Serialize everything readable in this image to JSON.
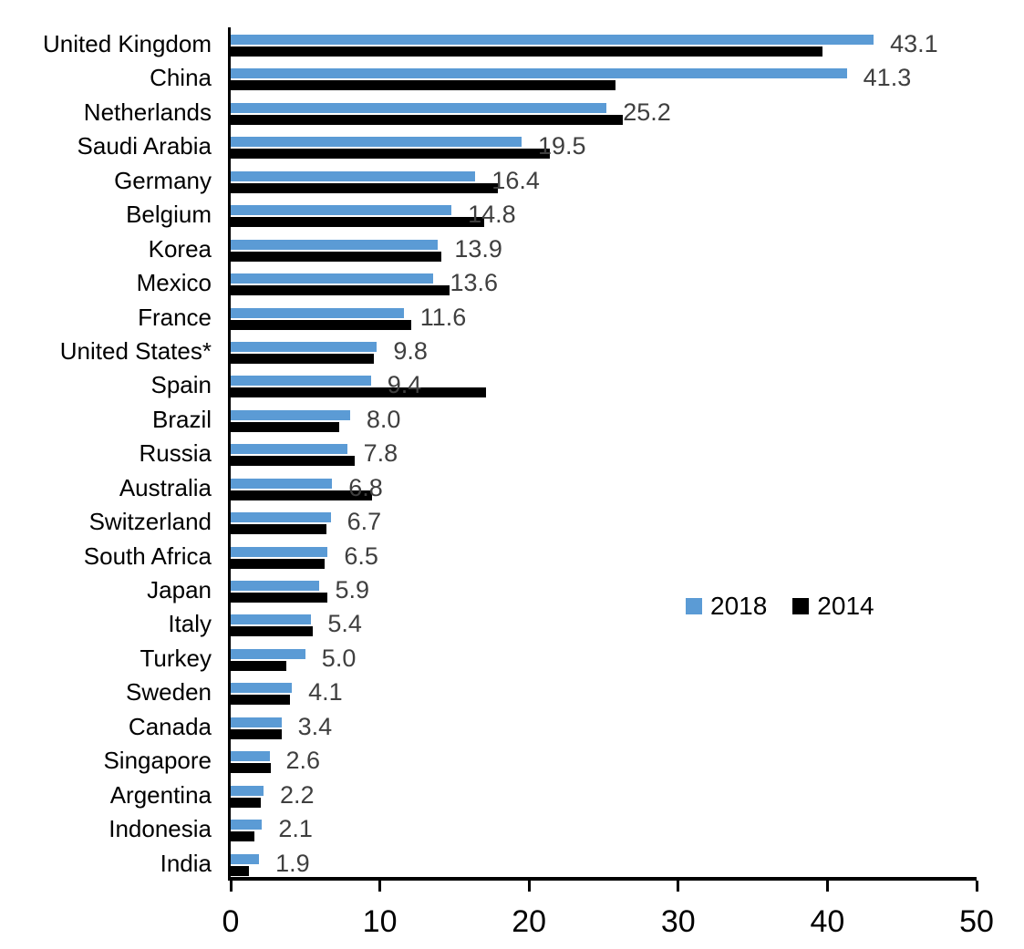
{
  "chart_data": {
    "type": "bar",
    "orientation": "horizontal",
    "title": "",
    "categories": [
      "United Kingdom",
      "China",
      "Netherlands",
      "Saudi Arabia",
      "Germany",
      "Belgium",
      "Korea",
      "Mexico",
      "France",
      "United States*",
      "Spain",
      "Brazil",
      "Russia",
      "Australia",
      "Switzerland",
      "South Africa",
      "Japan",
      "Italy",
      "Turkey",
      "Sweden",
      "Canada",
      "Singapore",
      "Argentina",
      "Indonesia",
      "India"
    ],
    "series": [
      {
        "name": "2018",
        "color": "#5B9BD5",
        "values": [
          43.1,
          41.3,
          25.2,
          19.5,
          16.4,
          14.8,
          13.9,
          13.6,
          11.6,
          9.8,
          9.4,
          8.0,
          7.8,
          6.8,
          6.7,
          6.5,
          5.9,
          5.4,
          5.0,
          4.1,
          3.4,
          2.6,
          2.2,
          2.1,
          1.9
        ]
      },
      {
        "name": "2014",
        "color": "#000000",
        "values": [
          39.7,
          25.8,
          26.3,
          21.4,
          17.9,
          17.0,
          14.1,
          14.7,
          12.1,
          9.6,
          17.1,
          7.3,
          8.3,
          9.5,
          6.4,
          6.3,
          6.5,
          5.5,
          3.7,
          4.0,
          3.4,
          2.7,
          2.0,
          1.6,
          1.2
        ]
      }
    ],
    "data_labels": [
      "43.1",
      "41.3",
      "25.2",
      "19.5",
      "16.4",
      "14.8",
      "13.9",
      "13.6",
      "11.6",
      "9.8",
      "9.4",
      "8.0",
      "7.8",
      "6.8",
      "6.7",
      "6.5",
      "5.9",
      "5.4",
      "5.0",
      "4.1",
      "3.4",
      "2.6",
      "2.2",
      "2.1",
      "1.9"
    ],
    "data_label_series": "2018",
    "data_label_color": "#3F3F3F",
    "xlim": [
      0,
      50
    ],
    "x_ticks": [
      0,
      10,
      20,
      30,
      40,
      50
    ],
    "x_tick_labels": [
      "0",
      "10",
      "20",
      "30",
      "40",
      "50"
    ],
    "grid": false,
    "legend": {
      "position": "middle-right",
      "entries": [
        {
          "label": "2018",
          "color": "#5B9BD5"
        },
        {
          "label": "2014",
          "color": "#000000"
        }
      ]
    }
  }
}
